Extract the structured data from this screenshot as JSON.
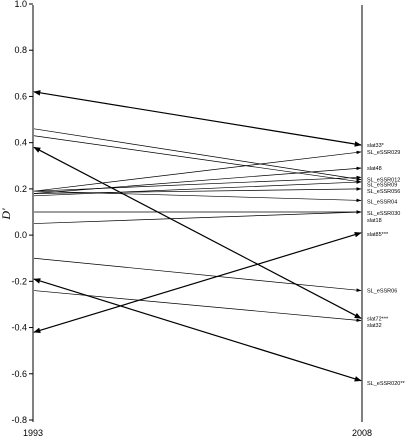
{
  "chart_data": {
    "type": "line",
    "title": "",
    "xlabel": "",
    "ylabel": "D'",
    "x": [
      "1993",
      "2008"
    ],
    "ylim": [
      -0.8,
      1.0
    ],
    "yticks": [
      "1.0",
      "0.8",
      "0.6",
      "0.4",
      "0.2",
      "0.0",
      "-0.2",
      "-0.4",
      "-0.6",
      "-0.8"
    ],
    "grid": false,
    "colors": {
      "line": "#000000",
      "axis": "#000000"
    },
    "series": [
      {
        "values": [
          0.62,
          0.39
        ],
        "marker": "slat33*",
        "arrow": "both",
        "bold": true
      },
      {
        "values": [
          0.46,
          0.24
        ],
        "marker": "",
        "arrow": "end",
        "bold": false
      },
      {
        "values": [
          0.43,
          0.23
        ],
        "marker": "",
        "arrow": "end",
        "bold": false
      },
      {
        "values": [
          0.19,
          0.36
        ],
        "marker": "SL_eSSR029",
        "arrow": "end",
        "bold": false
      },
      {
        "values": [
          0.18,
          0.29
        ],
        "marker": "slat48",
        "arrow": "end",
        "bold": false
      },
      {
        "values": [
          0.19,
          0.25
        ],
        "marker": "SL_eSSR012",
        "arrow": "end",
        "bold": false
      },
      {
        "values": [
          0.17,
          0.23
        ],
        "marker": "SL_eSSR09",
        "arrow": "end",
        "bold": false
      },
      {
        "values": [
          0.18,
          0.2
        ],
        "marker": "SL_eSSR056",
        "arrow": "end",
        "bold": false
      },
      {
        "values": [
          0.19,
          0.15
        ],
        "marker": "SL_eSSR04",
        "arrow": "end",
        "bold": false
      },
      {
        "values": [
          0.1,
          0.1
        ],
        "marker": "SL_eSSR030",
        "arrow": "end",
        "bold": false
      },
      {
        "values": [
          0.05,
          0.1
        ],
        "marker": "slat18",
        "arrow": "end",
        "bold": false
      },
      {
        "values": [
          -0.42,
          0.01
        ],
        "marker": "slat85***",
        "arrow": "both",
        "bold": true
      },
      {
        "values": [
          -0.1,
          -0.24
        ],
        "marker": "SL_eSSR06",
        "arrow": "end",
        "bold": false
      },
      {
        "values": [
          0.38,
          -0.36
        ],
        "marker": "slat72***",
        "arrow": "both",
        "bold": true
      },
      {
        "values": [
          -0.24,
          -0.37
        ],
        "marker": "slat32",
        "arrow": "end",
        "bold": false
      },
      {
        "values": [
          -0.19,
          -0.63
        ],
        "marker": "SL_eSSR020***",
        "arrow": "both",
        "bold": true
      }
    ],
    "label_positions": [
      0.39,
      0.36,
      0.29,
      0.24,
      0.22,
      0.19,
      0.145,
      0.095,
      0.065,
      0.005,
      -0.24,
      -0.36,
      -0.39,
      -0.64
    ],
    "label_names": [
      "slat33*",
      "SL_eSSR029",
      "slat48",
      "SL_eSSR012",
      "SL_eSSR09",
      "SL_eSSR056",
      "SL_eSSR04",
      "SL_eSSR030",
      "slat18",
      "slat85***",
      "SL_eSSR06",
      "slat72***",
      "slat32",
      "SL_eSSR020***"
    ]
  }
}
